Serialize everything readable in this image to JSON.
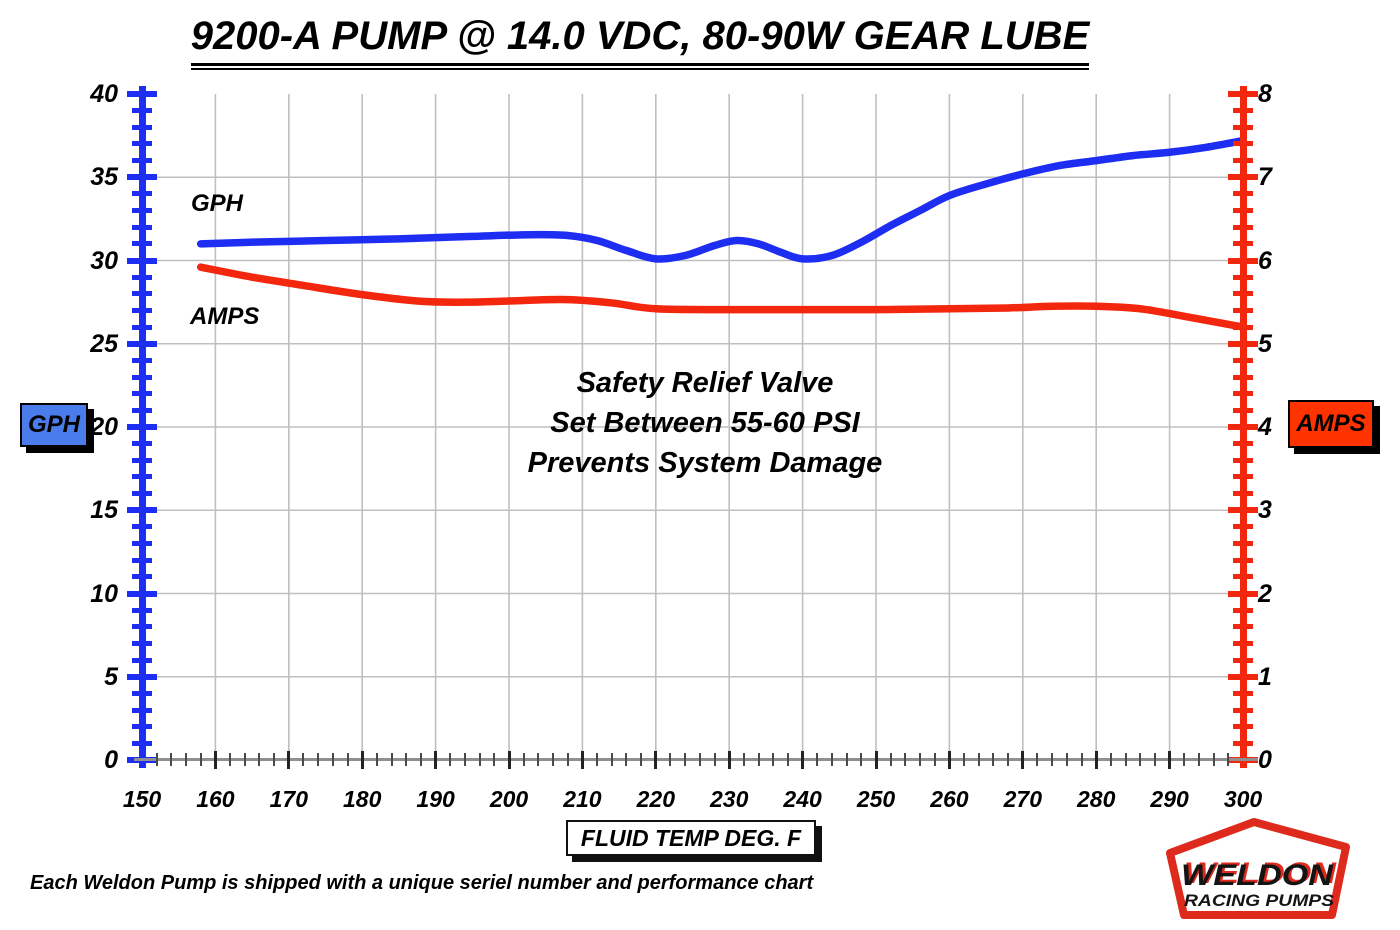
{
  "chart_data": {
    "type": "line",
    "title": "9200-A PUMP @ 14.0 VDC, 80-90W GEAR LUBE",
    "xlabel": "FLUID TEMP DEG. F",
    "grid": true,
    "x_axis": {
      "min": 150,
      "max": 300,
      "label_step": 10,
      "minor_step": 2
    },
    "y_left_axis": {
      "label": "GPH",
      "min": 0,
      "max": 40,
      "label_step": 5,
      "minor_step": 1,
      "color": "#1e2df2",
      "box_color": "#4a7cec"
    },
    "y_right_axis": {
      "label": "AMPS",
      "min": 0,
      "max": 8,
      "label_step": 1,
      "minor_step": 0.2,
      "color": "#f3260e",
      "box_color": "#ff3300"
    },
    "annotation_lines": [
      "Safety Relief Valve",
      "Set Between 55-60 PSI",
      "Prevents System Damage"
    ],
    "series": [
      {
        "name": "GPH",
        "axis": "left",
        "color": "#1e2df2",
        "x": [
          158,
          165,
          175,
          185,
          195,
          203,
          208,
          212,
          216,
          220,
          224,
          228,
          231,
          234,
          237,
          240,
          244,
          248,
          252,
          256,
          260,
          265,
          270,
          275,
          280,
          285,
          290,
          295,
          300
        ],
        "values": [
          31.0,
          31.1,
          31.2,
          31.3,
          31.45,
          31.55,
          31.5,
          31.2,
          30.6,
          30.1,
          30.3,
          30.9,
          31.2,
          31.0,
          30.5,
          30.1,
          30.3,
          31.1,
          32.1,
          33.0,
          33.9,
          34.6,
          35.2,
          35.7,
          36.0,
          36.3,
          36.5,
          36.8,
          37.2
        ]
      },
      {
        "name": "AMPS",
        "axis": "right",
        "color": "#f3260e",
        "x": [
          158,
          165,
          172,
          180,
          188,
          195,
          202,
          208,
          214,
          220,
          230,
          240,
          250,
          260,
          268,
          274,
          280,
          286,
          292,
          300
        ],
        "values": [
          5.92,
          5.8,
          5.7,
          5.59,
          5.51,
          5.5,
          5.52,
          5.53,
          5.49,
          5.42,
          5.41,
          5.41,
          5.41,
          5.42,
          5.43,
          5.45,
          5.45,
          5.42,
          5.33,
          5.2
        ]
      }
    ]
  },
  "footnote": "Each Weldon Pump is shipped with a unique seriel number and performance chart",
  "logo": {
    "line1": "WELDON",
    "line2": "RACING PUMPS",
    "color": "#dd2a1c"
  }
}
